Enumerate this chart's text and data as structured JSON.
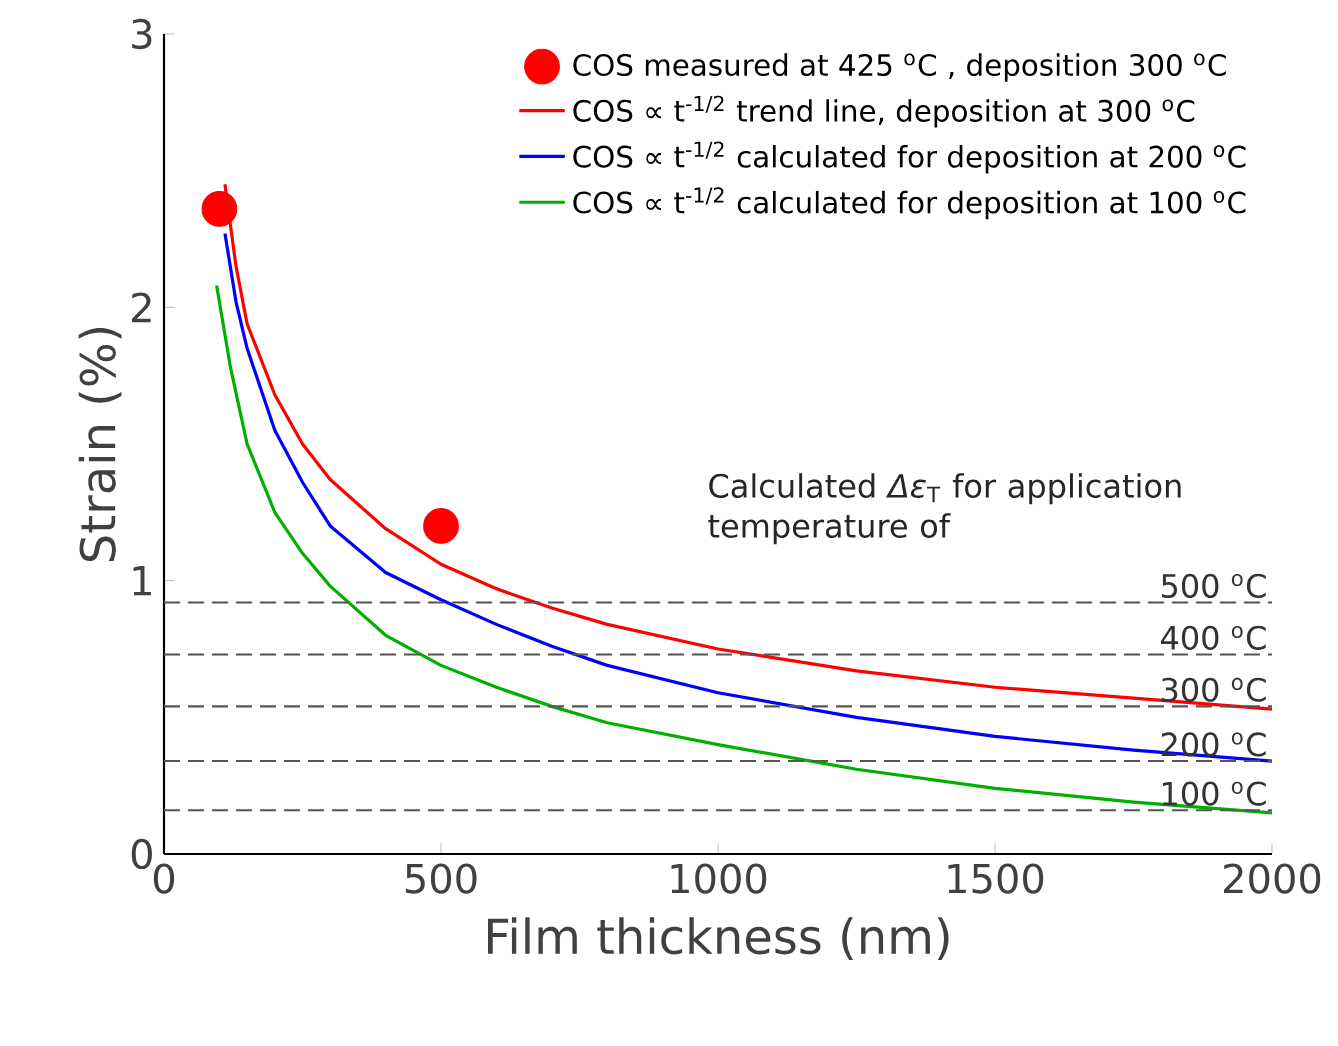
{
  "chart_data": {
    "type": "line",
    "xlabel": "Film thickness (nm)",
    "ylabel": "Strain (%)",
    "xlim": [
      0,
      2000
    ],
    "ylim": [
      0,
      3
    ],
    "xticks": [
      0,
      500,
      1000,
      1500,
      2000
    ],
    "yticks": [
      0,
      1,
      2,
      3
    ],
    "legend": "top right",
    "series": [
      {
        "type": "scatter",
        "name": "COS measured at 425 $^{o}$C , deposition 300 $^{o}$C",
        "color": "#ff0000",
        "marker": "circle",
        "x": [
          100,
          500
        ],
        "values": [
          2.36,
          1.2
        ]
      },
      {
        "name": "COS ∝ t$^{-1/2}$ trend line, deposition at 300 $^{o}$C",
        "color": "#ff0000",
        "x": [
          110,
          130,
          150,
          200,
          250,
          300,
          400,
          500,
          600,
          700,
          800,
          1000,
          1250,
          1500,
          1750,
          2000
        ],
        "values": [
          2.45,
          2.15,
          1.94,
          1.68,
          1.5,
          1.37,
          1.19,
          1.06,
          0.97,
          0.9,
          0.84,
          0.75,
          0.67,
          0.61,
          0.57,
          0.53
        ]
      },
      {
        "name": "COS ∝ t$^{-1/2}$ calculated for deposition at 200 $^{o}$C",
        "color": "#0000ff",
        "x": [
          110,
          130,
          150,
          200,
          250,
          300,
          400,
          500,
          600,
          700,
          800,
          1000,
          1250,
          1500,
          1750,
          2000
        ],
        "values": [
          2.27,
          2.02,
          1.85,
          1.55,
          1.36,
          1.2,
          1.03,
          0.93,
          0.84,
          0.76,
          0.69,
          0.59,
          0.5,
          0.43,
          0.38,
          0.34
        ]
      },
      {
        "name": "COS ∝ t$^{-1/2}$ calculated for deposition at 100 $^{o}$C",
        "color": "#00b000",
        "x": [
          95,
          120,
          150,
          200,
          250,
          300,
          400,
          500,
          600,
          700,
          800,
          1000,
          1250,
          1500,
          1750,
          2000
        ],
        "values": [
          2.08,
          1.78,
          1.5,
          1.25,
          1.1,
          0.98,
          0.8,
          0.69,
          0.61,
          0.54,
          0.48,
          0.4,
          0.31,
          0.24,
          0.19,
          0.15
        ]
      }
    ],
    "ref_lines": [
      {
        "axis": "y",
        "value": 0.92,
        "label": "500 $^{o}$C",
        "color": "#555555",
        "line_style": "dashed"
      },
      {
        "axis": "y",
        "value": 0.73,
        "label": "400 $^{o}$C",
        "color": "#555555",
        "line_style": "dashed"
      },
      {
        "axis": "y",
        "value": 0.54,
        "label": "300 $^{o}$C",
        "color": "#555555",
        "line_style": "dashed"
      },
      {
        "axis": "y",
        "value": 0.34,
        "label": "200 $^{o}$C",
        "color": "#555555",
        "line_style": "dashed"
      },
      {
        "axis": "y",
        "value": 0.16,
        "label": "100 $^{o}$C",
        "color": "#555555",
        "line_style": "dashed"
      }
    ],
    "annotations": [
      "Calculated *Δε*$_{T}$ for application temperature of"
    ]
  }
}
